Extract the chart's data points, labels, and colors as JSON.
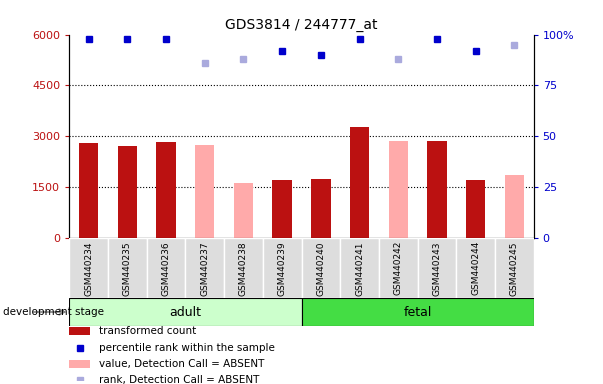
{
  "title": "GDS3814 / 244777_at",
  "samples": [
    "GSM440234",
    "GSM440235",
    "GSM440236",
    "GSM440237",
    "GSM440238",
    "GSM440239",
    "GSM440240",
    "GSM440241",
    "GSM440242",
    "GSM440243",
    "GSM440244",
    "GSM440245"
  ],
  "transformed_count": [
    2800,
    2700,
    2820,
    null,
    null,
    1700,
    1750,
    3280,
    null,
    2870,
    1700,
    null
  ],
  "absent_value": [
    null,
    null,
    null,
    2750,
    1620,
    null,
    null,
    null,
    2870,
    null,
    null,
    1870
  ],
  "percentile_rank_present": [
    98,
    98,
    98,
    null,
    null,
    92,
    90,
    98,
    null,
    98,
    92,
    null
  ],
  "percentile_rank_absent": [
    null,
    null,
    null,
    86,
    88,
    null,
    null,
    null,
    88,
    null,
    null,
    95
  ],
  "ylim_left": [
    0,
    6000
  ],
  "ylim_right": [
    0,
    100
  ],
  "yticks_left": [
    0,
    1500,
    3000,
    4500,
    6000
  ],
  "ytick_labels_left": [
    "0",
    "1500",
    "3000",
    "4500",
    "6000"
  ],
  "yticks_right": [
    0,
    25,
    50,
    75,
    100
  ],
  "ytick_labels_right": [
    "0",
    "25",
    "50",
    "75",
    "100%"
  ],
  "bar_color_present": "#BB1111",
  "bar_color_absent": "#FFAAAA",
  "dot_color_present": "#0000CC",
  "dot_color_absent": "#AAAADD",
  "adult_color_light": "#CCFFCC",
  "adult_color": "#CCFFCC",
  "fetal_color": "#44DD44",
  "group_label": "development stage",
  "figsize": [
    6.03,
    3.84
  ],
  "dpi": 100
}
